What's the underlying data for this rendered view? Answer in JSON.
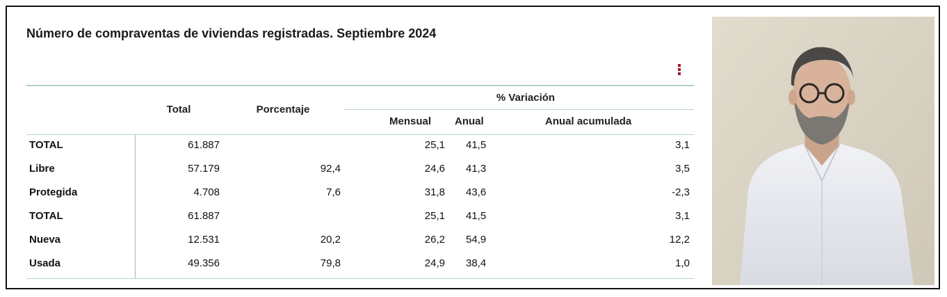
{
  "title": "Número de compraventas de viviendas registradas. Septiembre 2024",
  "headers": {
    "total": "Total",
    "porcentaje": "Porcentaje",
    "variacion": "% Variación",
    "mensual": "Mensual",
    "anual": "Anual",
    "anual_acumulada": "Anual acumulada"
  },
  "rows": [
    {
      "label": "TOTAL",
      "total": "61.887",
      "porcentaje": "",
      "mensual": "25,1",
      "anual": "41,5",
      "acumulada": "3,1"
    },
    {
      "label": "Libre",
      "total": "57.179",
      "porcentaje": "92,4",
      "mensual": "24,6",
      "anual": "41,3",
      "acumulada": "3,5"
    },
    {
      "label": "Protegida",
      "total": "4.708",
      "porcentaje": "7,6",
      "mensual": "31,8",
      "anual": "43,6",
      "acumulada": "-2,3"
    },
    {
      "label": "TOTAL",
      "total": "61.887",
      "porcentaje": "",
      "mensual": "25,1",
      "anual": "41,5",
      "acumulada": "3,1"
    },
    {
      "label": "Nueva",
      "total": "12.531",
      "porcentaje": "20,2",
      "mensual": "26,2",
      "anual": "54,9",
      "acumulada": "12,2"
    },
    {
      "label": "Usada",
      "total": "49.356",
      "porcentaje": "79,8",
      "mensual": "24,9",
      "anual": "38,4",
      "acumulada": "1,0"
    }
  ],
  "colors": {
    "menu_icon": "#a01828",
    "rule": "#b7d3d3",
    "photo_bg": "#d9d3c4"
  },
  "icons": {
    "menu": "kebab-menu-icon"
  }
}
